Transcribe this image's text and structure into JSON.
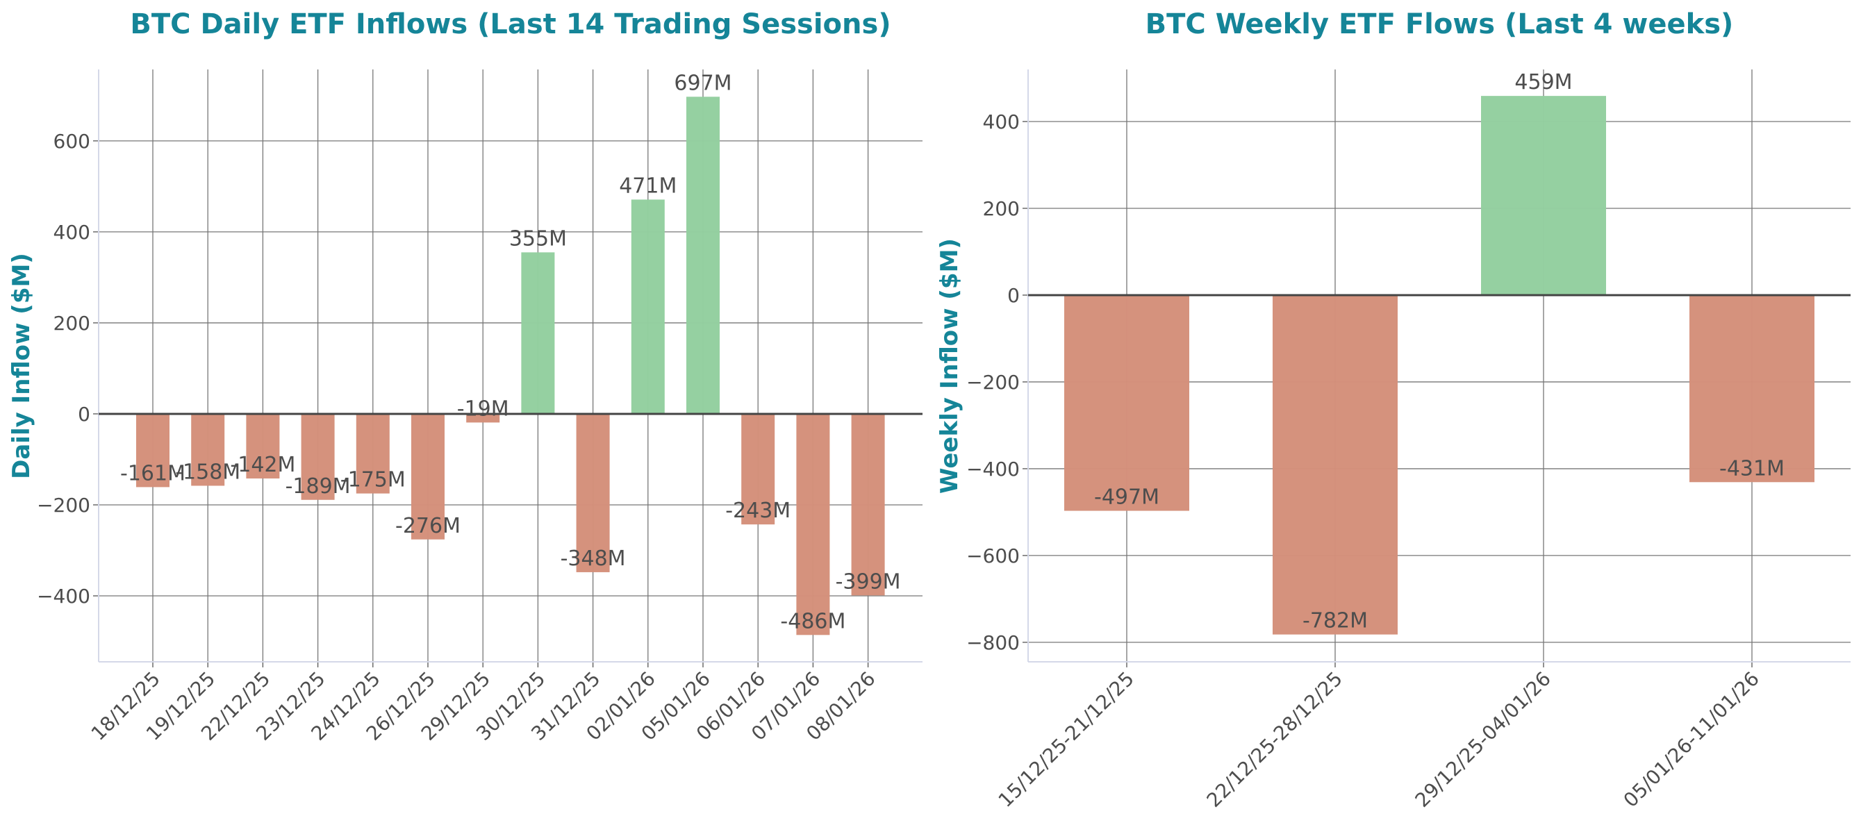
{
  "colors": {
    "positive": "#93cf9f",
    "negative": "#d4907a",
    "title": "#158598",
    "text": "#4d4d4d"
  },
  "chart_data": [
    {
      "type": "bar",
      "title": "BTC Daily ETF Inflows (Last 14 Trading Sessions)",
      "xlabel": "",
      "ylabel": "Daily Inflow ($M)",
      "categories": [
        "18/12/25",
        "19/12/25",
        "22/12/25",
        "23/12/25",
        "24/12/25",
        "26/12/25",
        "29/12/25",
        "30/12/25",
        "31/12/25",
        "02/01/26",
        "05/01/26",
        "06/01/26",
        "07/01/26",
        "08/01/26"
      ],
      "values": [
        -161,
        -158,
        -142,
        -189,
        -175,
        -276,
        -19,
        355,
        -348,
        471,
        697,
        -243,
        -486,
        -399
      ],
      "data_labels": [
        "-161M",
        "-158M",
        "-142M",
        "-189M",
        "-175M",
        "-276M",
        "-19M",
        "355M",
        "-348M",
        "471M",
        "697M",
        "-243M",
        "-486M",
        "-399M"
      ],
      "yticks": [
        -400,
        -200,
        0,
        200,
        400,
        600
      ],
      "ytick_labels": [
        "−400",
        "−200",
        "0",
        "200",
        "400",
        "600"
      ],
      "ylim": [
        -545,
        757
      ],
      "grid": true
    },
    {
      "type": "bar",
      "title": "BTC Weekly ETF Flows (Last 4 weeks)",
      "xlabel": "",
      "ylabel": "Weekly Inflow ($M)",
      "categories": [
        "15/12/25-21/12/25",
        "22/12/25-28/12/25",
        "29/12/25-04/01/26",
        "05/01/26-11/01/26"
      ],
      "values": [
        -497,
        -782,
        459,
        -431
      ],
      "data_labels": [
        "-497M",
        "-782M",
        "459M",
        "-431M"
      ],
      "yticks": [
        -800,
        -600,
        -400,
        -200,
        0,
        200,
        400
      ],
      "ytick_labels": [
        "−800",
        "−600",
        "−400",
        "−200",
        "0",
        "200",
        "400"
      ],
      "ylim": [
        -845,
        520
      ],
      "grid": true
    }
  ]
}
